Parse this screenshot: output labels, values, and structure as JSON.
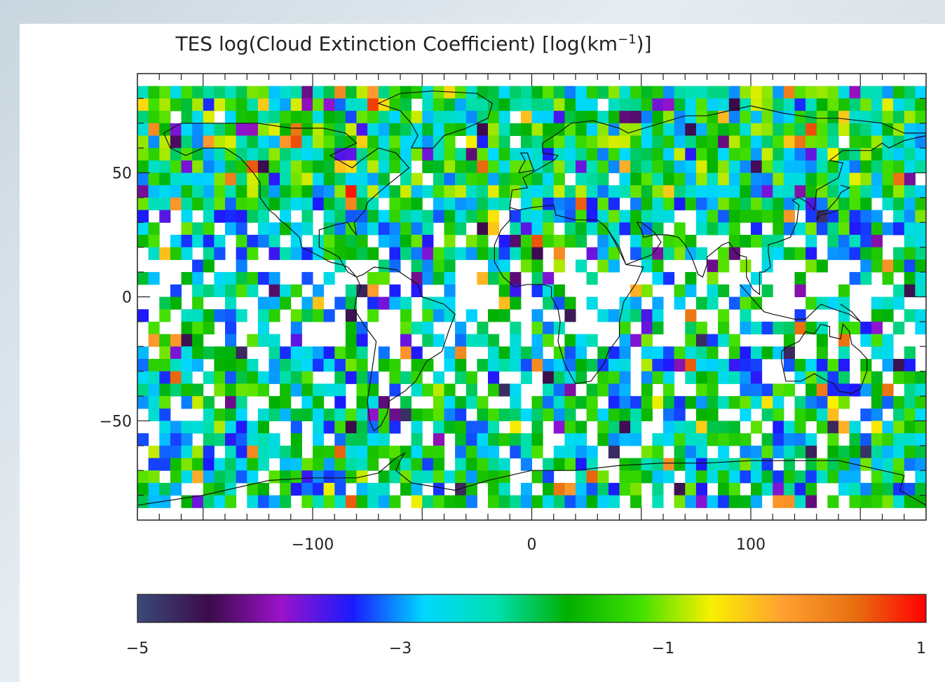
{
  "chart_data": {
    "type": "heatmap",
    "title": "TES log(Cloud Extinction Coefficient) [log(km",
    "title_superscript": "−1",
    "title_suffix": ")]",
    "xlabel": "",
    "ylabel": "",
    "xlim": [
      -180,
      180
    ],
    "ylim": [
      -90,
      90
    ],
    "x_ticks": [
      -100,
      0,
      100
    ],
    "y_ticks": [
      50,
      0,
      -50
    ],
    "x_tick_labels": [
      "−100",
      "0",
      "100"
    ],
    "y_tick_labels": [
      "50",
      "0",
      "−50"
    ],
    "cell_size_deg": [
      10,
      5
    ],
    "value_range": [
      -5,
      1
    ],
    "missing_value_color": "#ffffff",
    "colorbar": {
      "range": [
        -5,
        1
      ],
      "ticks": [
        -5,
        -3,
        -1,
        1
      ],
      "tick_labels": [
        "−5",
        "−3",
        "−1",
        "1"
      ],
      "colors": [
        "#3a4a78",
        "#3b0b4a",
        "#9b12c8",
        "#1a1aff",
        "#00d8ff",
        "#00e0b0",
        "#00b000",
        "#40e000",
        "#f8f000",
        "#ffa030",
        "#e87010",
        "#ff0000"
      ]
    },
    "grid": false,
    "coastlines": true,
    "legend": "colorbar-below"
  }
}
